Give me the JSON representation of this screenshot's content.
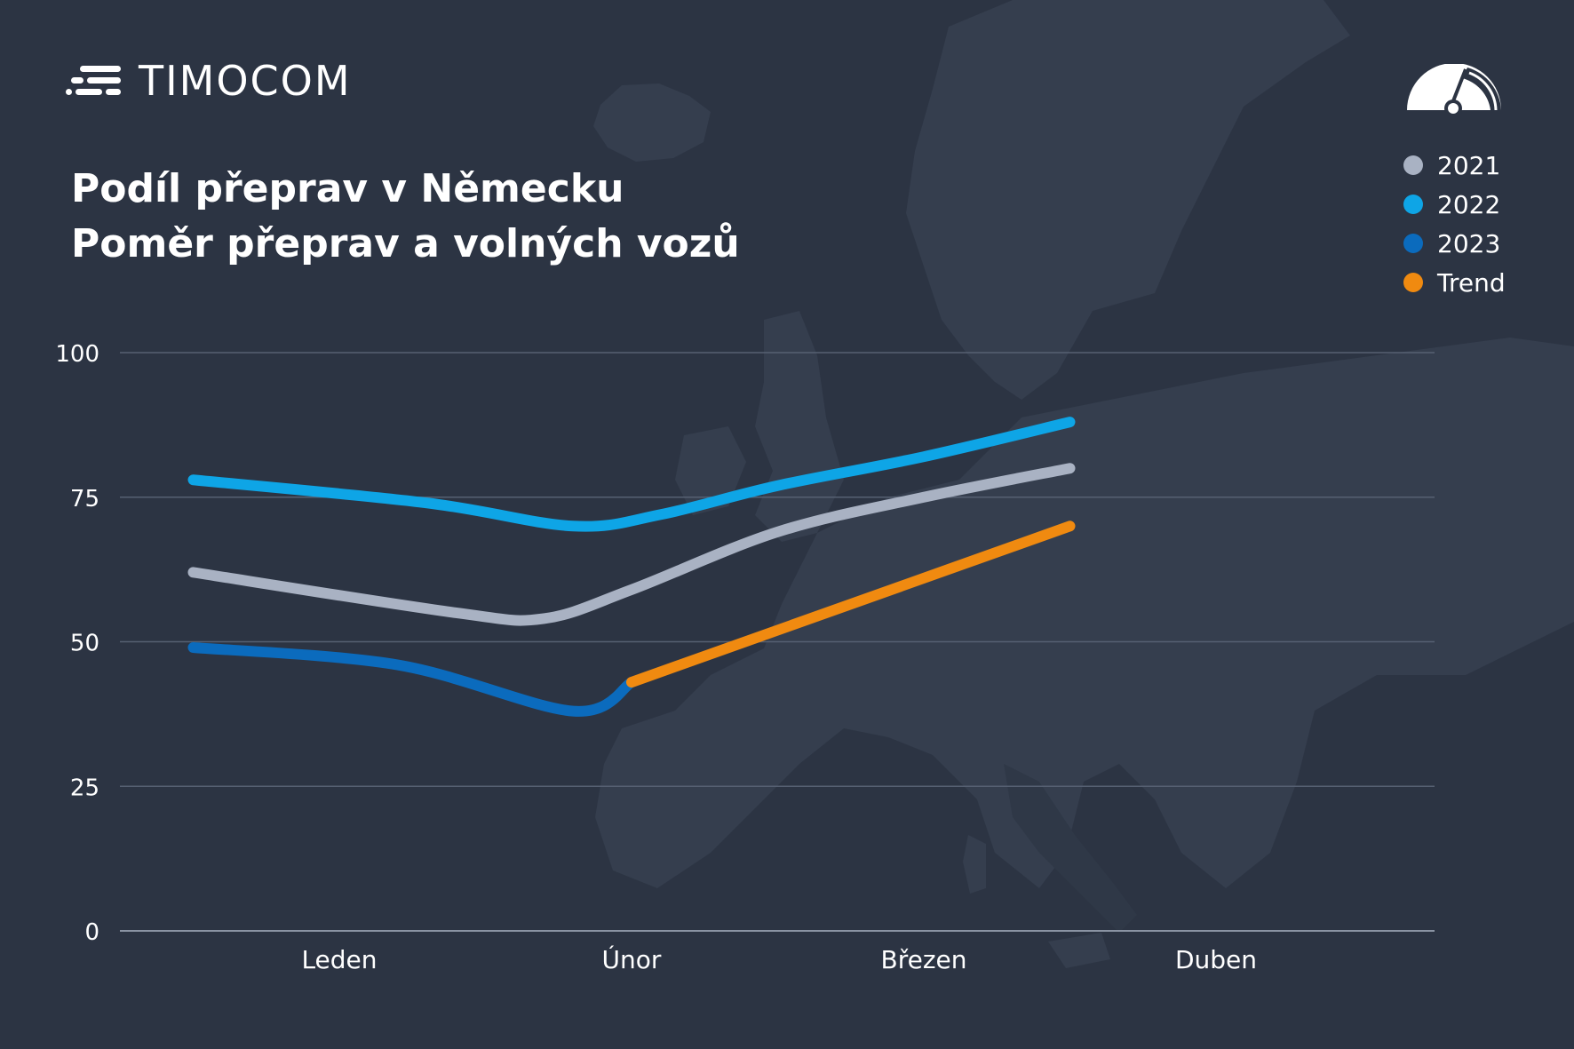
{
  "brand": {
    "name": "TIMOCOM"
  },
  "title": {
    "line1": "Podíl přeprav v Německu",
    "line2": "Poměr přeprav a volných vozů"
  },
  "legend": [
    {
      "label": "2021",
      "color": "#a9b2c3"
    },
    {
      "label": "2022",
      "color": "#0ea5e6"
    },
    {
      "label": "2023",
      "color": "#0b6bbd"
    },
    {
      "label": "Trend",
      "color": "#f08a10"
    }
  ],
  "colors": {
    "background": "#2c3443",
    "map": "#353e4e",
    "gridline": "#566072",
    "axis_text": "#ffffff"
  },
  "chart_data": {
    "type": "line",
    "categories": [
      "Leden",
      "Únor",
      "Březen",
      "Duben"
    ],
    "ylim": [
      0,
      100
    ],
    "yticks": [
      0,
      25,
      50,
      75,
      100
    ],
    "grid": true,
    "legend_position": "top-right",
    "series": [
      {
        "name": "2021",
        "color": "#a9b2c3",
        "points": [
          [
            0.5,
            62
          ],
          [
            1.4,
            55
          ],
          [
            1.7,
            54
          ],
          [
            2.0,
            59
          ],
          [
            2.5,
            69
          ],
          [
            3.0,
            75
          ],
          [
            3.5,
            80
          ]
        ]
      },
      {
        "name": "2022",
        "color": "#0ea5e6",
        "points": [
          [
            0.5,
            78
          ],
          [
            1.3,
            74
          ],
          [
            1.8,
            70
          ],
          [
            2.1,
            72
          ],
          [
            2.5,
            77
          ],
          [
            3.0,
            82
          ],
          [
            3.5,
            88
          ]
        ]
      },
      {
        "name": "2023",
        "color": "#0b6bbd",
        "points": [
          [
            0.5,
            49
          ],
          [
            1.2,
            46
          ],
          [
            1.8,
            38
          ],
          [
            2.0,
            43
          ]
        ]
      },
      {
        "name": "Trend",
        "color": "#f08a10",
        "points": [
          [
            2.0,
            43
          ],
          [
            3.5,
            70
          ]
        ]
      }
    ]
  }
}
